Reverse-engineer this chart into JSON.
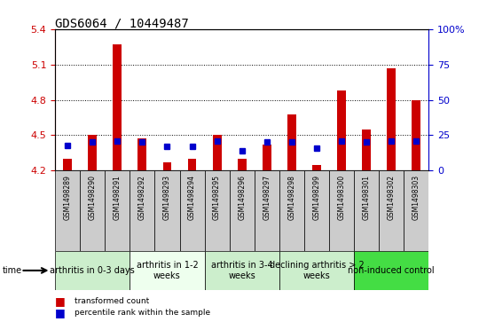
{
  "title": "GDS6064 / 10449487",
  "samples": [
    "GSM1498289",
    "GSM1498290",
    "GSM1498291",
    "GSM1498292",
    "GSM1498293",
    "GSM1498294",
    "GSM1498295",
    "GSM1498296",
    "GSM1498297",
    "GSM1498298",
    "GSM1498299",
    "GSM1498300",
    "GSM1498301",
    "GSM1498302",
    "GSM1498303"
  ],
  "red_values": [
    4.3,
    4.5,
    5.27,
    4.47,
    4.27,
    4.3,
    4.5,
    4.3,
    4.42,
    4.68,
    4.25,
    4.88,
    4.55,
    5.07,
    4.8
  ],
  "blue_values": [
    18,
    20,
    21,
    20,
    17,
    17,
    21,
    14,
    20,
    20,
    16,
    21,
    20,
    21,
    21
  ],
  "y_min": 4.2,
  "y_max": 5.4,
  "y_ticks": [
    4.2,
    4.5,
    4.8,
    5.1,
    5.4
  ],
  "y2_ticks": [
    0,
    25,
    50,
    75,
    100
  ],
  "groups": [
    {
      "label": "arthritis in 0-3 days",
      "start": 0,
      "end": 3,
      "color": "#cceecc"
    },
    {
      "label": "arthritis in 1-2\nweeks",
      "start": 3,
      "end": 6,
      "color": "#eeffee"
    },
    {
      "label": "arthritis in 3-4\nweeks",
      "start": 6,
      "end": 9,
      "color": "#cceecc"
    },
    {
      "label": "declining arthritis > 2\nweeks",
      "start": 9,
      "end": 12,
      "color": "#cceecc"
    },
    {
      "label": "non-induced control",
      "start": 12,
      "end": 15,
      "color": "#44dd44"
    }
  ],
  "bar_color": "#cc0000",
  "blue_color": "#0000cc",
  "title_color": "#000000",
  "left_axis_color": "#cc0000",
  "right_axis_color": "#0000cc",
  "bar_width": 0.35,
  "blue_marker_size": 5,
  "sample_bg_color": "#cccccc",
  "sample_label_fontsize": 5.5,
  "group_label_fontsize": 7
}
